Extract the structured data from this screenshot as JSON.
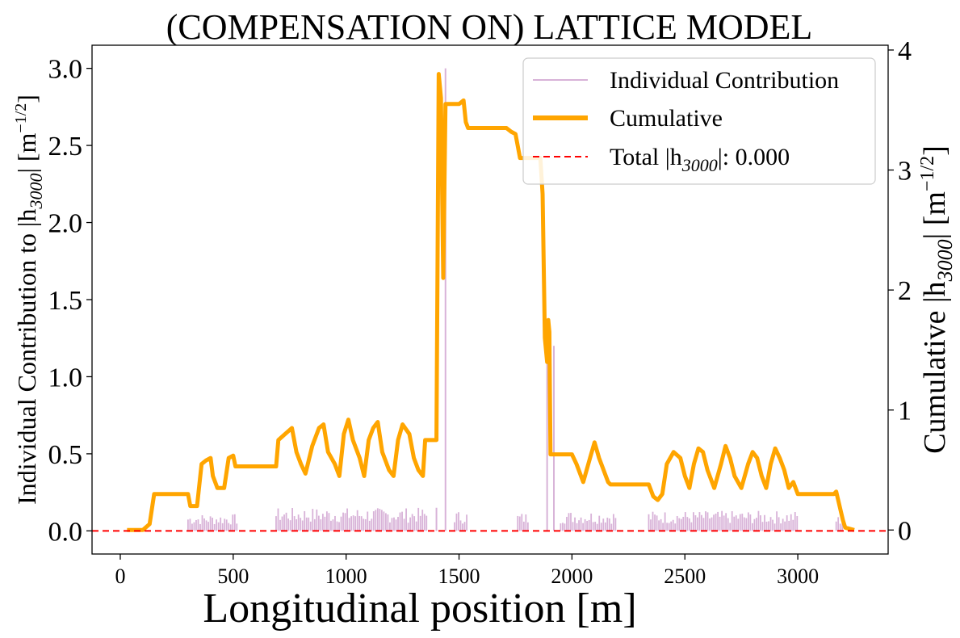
{
  "chart_data": {
    "type": "line",
    "title": "(COMPENSATION ON) LATTICE MODEL",
    "xlabel": "Longitudinal position [m]",
    "ylabel": "Individual Contribution to |h3000| [m−1/2]",
    "ylabel_right": "Cumulative |h3000| [m−1/2]",
    "xlim": [
      -125,
      3400
    ],
    "ylim": [
      -0.15,
      3.15
    ],
    "ylim_right": [
      -0.2,
      4.04
    ],
    "x_ticks": [
      "0",
      "500",
      "1000",
      "1500",
      "2000",
      "2500",
      "3000"
    ],
    "x_tick_values": [
      0,
      500,
      1000,
      1500,
      2000,
      2500,
      3000
    ],
    "y_ticks": [
      "0.0",
      "0.5",
      "1.0",
      "1.5",
      "2.0",
      "2.5",
      "3.0"
    ],
    "y_tick_values": [
      0.0,
      0.5,
      1.0,
      1.5,
      2.0,
      2.5,
      3.0
    ],
    "y_ticks_right": [
      "0",
      "1",
      "2",
      "3",
      "4"
    ],
    "y_tick_values_right": [
      0,
      1,
      2,
      3,
      4
    ],
    "grid": false,
    "legend_position": "top-right",
    "colors": {
      "individual": "#d8b2d8",
      "cumulative": "#ffa500",
      "total": "#ff0000"
    },
    "series": [
      {
        "name": "Individual Contribution",
        "axis": "left",
        "style": "stems",
        "regions": [
          {
            "x_range": [
              300,
              520
            ],
            "max_height": 0.11
          },
          {
            "x_range": [
              690,
              1360
            ],
            "max_height": 0.15
          },
          {
            "x_range": [
              1480,
              1540
            ],
            "max_height": 0.13
          },
          {
            "x_range": [
              1760,
              1810
            ],
            "max_height": 0.12
          },
          {
            "x_range": [
              1950,
              2200
            ],
            "max_height": 0.13
          },
          {
            "x_range": [
              2340,
              3000
            ],
            "max_height": 0.13
          },
          {
            "x_range": [
              3170,
              3200
            ],
            "max_height": 0.1
          }
        ],
        "spikes": [
          {
            "x": 1400,
            "y": 0.15
          },
          {
            "x": 1440,
            "y": 3.0
          },
          {
            "x": 1890,
            "y": 1.2
          },
          {
            "x": 1920,
            "y": 1.2
          }
        ]
      },
      {
        "name": "Cumulative",
        "axis": "right",
        "points": [
          [
            30,
            0.0
          ],
          [
            100,
            0.0
          ],
          [
            130,
            0.05
          ],
          [
            150,
            0.3
          ],
          [
            300,
            0.3
          ],
          [
            310,
            0.2
          ],
          [
            340,
            0.2
          ],
          [
            360,
            0.55
          ],
          [
            380,
            0.58
          ],
          [
            400,
            0.6
          ],
          [
            410,
            0.45
          ],
          [
            430,
            0.35
          ],
          [
            460,
            0.35
          ],
          [
            480,
            0.6
          ],
          [
            500,
            0.62
          ],
          [
            510,
            0.53
          ],
          [
            690,
            0.53
          ],
          [
            700,
            0.75
          ],
          [
            730,
            0.8
          ],
          [
            760,
            0.85
          ],
          [
            780,
            0.65
          ],
          [
            800,
            0.55
          ],
          [
            820,
            0.47
          ],
          [
            850,
            0.7
          ],
          [
            880,
            0.85
          ],
          [
            900,
            0.88
          ],
          [
            920,
            0.65
          ],
          [
            950,
            0.55
          ],
          [
            970,
            0.45
          ],
          [
            990,
            0.8
          ],
          [
            1010,
            0.92
          ],
          [
            1030,
            0.75
          ],
          [
            1060,
            0.6
          ],
          [
            1080,
            0.45
          ],
          [
            1100,
            0.75
          ],
          [
            1120,
            0.85
          ],
          [
            1140,
            0.9
          ],
          [
            1160,
            0.65
          ],
          [
            1190,
            0.5
          ],
          [
            1210,
            0.45
          ],
          [
            1230,
            0.75
          ],
          [
            1250,
            0.88
          ],
          [
            1280,
            0.8
          ],
          [
            1300,
            0.6
          ],
          [
            1320,
            0.5
          ],
          [
            1340,
            0.45
          ],
          [
            1350,
            0.75
          ],
          [
            1400,
            0.75
          ],
          [
            1410,
            3.8
          ],
          [
            1420,
            3.6
          ],
          [
            1430,
            2.1
          ],
          [
            1440,
            3.55
          ],
          [
            1500,
            3.55
          ],
          [
            1520,
            3.58
          ],
          [
            1530,
            3.4
          ],
          [
            1540,
            3.35
          ],
          [
            1620,
            3.35
          ],
          [
            1710,
            3.35
          ],
          [
            1730,
            3.32
          ],
          [
            1750,
            3.3
          ],
          [
            1770,
            3.1
          ],
          [
            1820,
            3.1
          ],
          [
            1860,
            3.1
          ],
          [
            1870,
            2.8
          ],
          [
            1880,
            1.6
          ],
          [
            1890,
            1.4
          ],
          [
            1895,
            1.75
          ],
          [
            1900,
            1.65
          ],
          [
            1905,
            0.63
          ],
          [
            2000,
            0.63
          ],
          [
            2020,
            0.55
          ],
          [
            2050,
            0.4
          ],
          [
            2080,
            0.6
          ],
          [
            2100,
            0.73
          ],
          [
            2120,
            0.6
          ],
          [
            2140,
            0.5
          ],
          [
            2160,
            0.4
          ],
          [
            2170,
            0.38
          ],
          [
            2180,
            0.38
          ],
          [
            2200,
            0.38
          ],
          [
            2340,
            0.38
          ],
          [
            2360,
            0.28
          ],
          [
            2380,
            0.25
          ],
          [
            2400,
            0.3
          ],
          [
            2420,
            0.55
          ],
          [
            2450,
            0.65
          ],
          [
            2480,
            0.6
          ],
          [
            2500,
            0.45
          ],
          [
            2520,
            0.35
          ],
          [
            2540,
            0.55
          ],
          [
            2560,
            0.68
          ],
          [
            2580,
            0.65
          ],
          [
            2600,
            0.5
          ],
          [
            2630,
            0.35
          ],
          [
            2660,
            0.55
          ],
          [
            2680,
            0.7
          ],
          [
            2700,
            0.6
          ],
          [
            2720,
            0.45
          ],
          [
            2750,
            0.35
          ],
          [
            2780,
            0.55
          ],
          [
            2800,
            0.65
          ],
          [
            2820,
            0.6
          ],
          [
            2840,
            0.45
          ],
          [
            2860,
            0.35
          ],
          [
            2880,
            0.55
          ],
          [
            2900,
            0.68
          ],
          [
            2920,
            0.6
          ],
          [
            2940,
            0.5
          ],
          [
            2960,
            0.35
          ],
          [
            2980,
            0.4
          ],
          [
            3000,
            0.3
          ],
          [
            3010,
            0.3
          ],
          [
            3100,
            0.3
          ],
          [
            3160,
            0.3
          ],
          [
            3170,
            0.32
          ],
          [
            3200,
            0.08
          ],
          [
            3210,
            0.02
          ],
          [
            3250,
            0.0
          ]
        ]
      },
      {
        "name": "Total |h3000|: 0.000",
        "axis": "left",
        "style": "dashed-hline",
        "y": 0.0
      }
    ]
  },
  "legend": {
    "individual": "Individual Contribution",
    "cumulative": "Cumulative",
    "total_prefix": "Total |h",
    "total_sub": "3000",
    "total_suffix": "|: 0.000"
  },
  "labels": {
    "ylabel_prefix": "Individual Contribution to |h",
    "ylabel_sub": "3000",
    "ylabel_mid": "| [m",
    "ylabel_sup": "−1/2",
    "ylabel_end": "]",
    "ylabel2_prefix": "Cumulative |h",
    "ylabel2_sub": "3000",
    "ylabel2_mid": "| [m",
    "ylabel2_sup": "−1/2",
    "ylabel2_end": "]"
  }
}
